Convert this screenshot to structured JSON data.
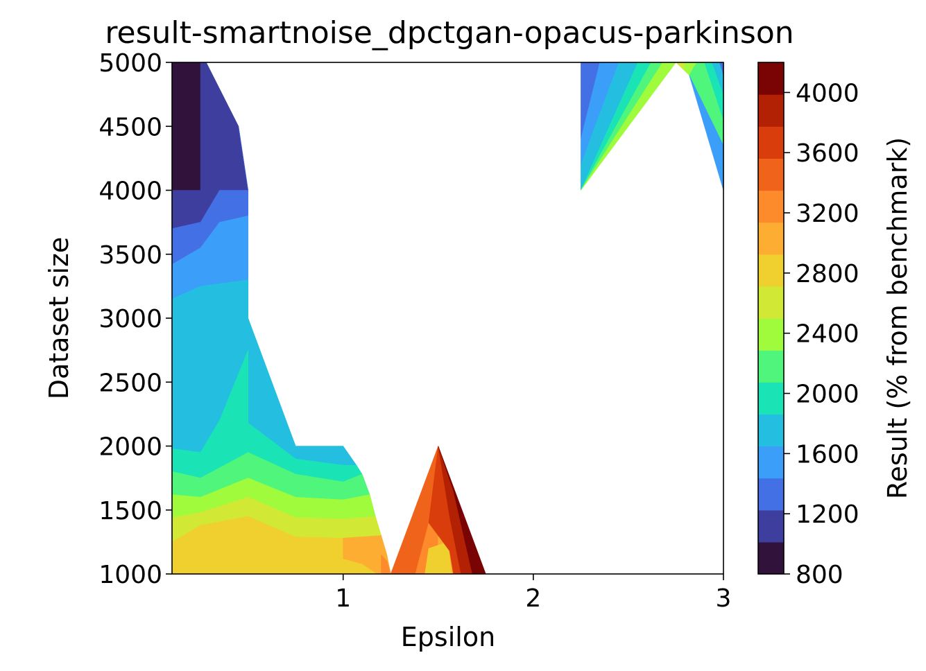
{
  "chart_data": {
    "type": "heatmap",
    "title": "result-smartnoise_dpctgan-opacus-parkinson",
    "xlabel": "Epsilon",
    "ylabel": "Dataset size",
    "colorbar_label": "Result (% from benchmark)",
    "xlim": [
      0.1,
      3
    ],
    "ylim": [
      1000,
      5000
    ],
    "x_ticks": [
      "1",
      "2",
      "3"
    ],
    "y_ticks": [
      "1000",
      "1500",
      "2000",
      "2500",
      "3000",
      "3500",
      "4000",
      "4500",
      "5000"
    ],
    "colorbar_ticks": [
      "800",
      "1200",
      "1600",
      "2000",
      "2400",
      "2800",
      "3200",
      "3600",
      "4000"
    ],
    "colorbar_range": [
      800,
      4200
    ],
    "colormap": "turbo",
    "level_colors": [
      "#30123b",
      "#3e3e9e",
      "#4470e6",
      "#3b9ef9",
      "#24bfe0",
      "#1ae4b6",
      "#4ff67b",
      "#a0fb3c",
      "#d1e934",
      "#efd02e",
      "#fcad32",
      "#fd8a2b",
      "#f0631a",
      "#d93d0c",
      "#b22103",
      "#7a0403"
    ],
    "regions": [
      {
        "level": 0,
        "value": 850,
        "points": [
          [
            0.1,
            5000
          ],
          [
            0.25,
            5000
          ],
          [
            0.25,
            4000
          ],
          [
            0.1,
            4000
          ]
        ]
      },
      {
        "level": 1,
        "value": 1150,
        "points": [
          [
            0.25,
            5000
          ],
          [
            0.28,
            5000
          ],
          [
            0.45,
            4500
          ],
          [
            0.5,
            4000
          ],
          [
            0.35,
            4000
          ],
          [
            0.25,
            3750
          ],
          [
            0.1,
            3700
          ],
          [
            0.1,
            4000
          ],
          [
            0.25,
            4000
          ]
        ]
      },
      {
        "level": 2,
        "value": 1400,
        "points": [
          [
            0.45,
            4500
          ],
          [
            0.5,
            4000
          ],
          [
            0.5,
            3800
          ],
          [
            0.35,
            3750
          ],
          [
            0.25,
            3550
          ],
          [
            0.1,
            3420
          ],
          [
            0.1,
            3700
          ],
          [
            0.25,
            3750
          ],
          [
            0.35,
            4000
          ],
          [
            0.5,
            4000
          ]
        ]
      },
      {
        "level": 3,
        "value": 1600,
        "points": [
          [
            0.1,
            3420
          ],
          [
            0.25,
            3550
          ],
          [
            0.35,
            3750
          ],
          [
            0.5,
            3800
          ],
          [
            0.5,
            3300
          ],
          [
            0.25,
            3250
          ],
          [
            0.1,
            3150
          ]
        ]
      },
      {
        "level": 2,
        "value": 1400,
        "points": [
          [
            0.1,
            2010
          ],
          [
            0.18,
            2550
          ],
          [
            0.23,
            2000
          ],
          [
            0.18,
            1880
          ]
        ]
      },
      {
        "level": 4,
        "value": 1800,
        "points": [
          [
            0.1,
            3150
          ],
          [
            0.25,
            3250
          ],
          [
            0.5,
            3300
          ],
          [
            0.5,
            3000
          ],
          [
            0.75,
            2000
          ],
          [
            1.0,
            2000
          ],
          [
            1.07,
            1850
          ],
          [
            1.0,
            1850
          ],
          [
            0.75,
            1900
          ],
          [
            0.5,
            2180
          ],
          [
            0.5,
            2750
          ],
          [
            0.35,
            2200
          ],
          [
            0.25,
            1950
          ],
          [
            0.1,
            1980
          ]
        ]
      },
      {
        "level": 5,
        "value": 2100,
        "points": [
          [
            0.1,
            1980
          ],
          [
            0.25,
            1950
          ],
          [
            0.35,
            2200
          ],
          [
            0.5,
            2750
          ],
          [
            0.5,
            2180
          ],
          [
            0.75,
            1900
          ],
          [
            1.0,
            1850
          ],
          [
            1.07,
            1850
          ],
          [
            1.1,
            1780
          ],
          [
            1.0,
            1720
          ],
          [
            0.75,
            1780
          ],
          [
            0.5,
            1950
          ],
          [
            0.25,
            1750
          ],
          [
            0.1,
            1800
          ]
        ]
      },
      {
        "level": 6,
        "value": 2300,
        "points": [
          [
            0.1,
            1800
          ],
          [
            0.25,
            1750
          ],
          [
            0.5,
            1950
          ],
          [
            0.75,
            1780
          ],
          [
            1.0,
            1720
          ],
          [
            1.1,
            1780
          ],
          [
            1.14,
            1620
          ],
          [
            1.0,
            1580
          ],
          [
            0.75,
            1600
          ],
          [
            0.5,
            1750
          ],
          [
            0.25,
            1600
          ],
          [
            0.1,
            1620
          ]
        ]
      },
      {
        "level": 7,
        "value": 2600,
        "points": [
          [
            0.1,
            1620
          ],
          [
            0.25,
            1600
          ],
          [
            0.5,
            1750
          ],
          [
            0.75,
            1600
          ],
          [
            1.0,
            1580
          ],
          [
            1.14,
            1620
          ],
          [
            1.17,
            1450
          ],
          [
            1.0,
            1430
          ],
          [
            0.75,
            1440
          ],
          [
            0.5,
            1600
          ],
          [
            0.25,
            1480
          ],
          [
            0.1,
            1440
          ]
        ]
      },
      {
        "level": 8,
        "value": 2750,
        "points": [
          [
            0.1,
            1440
          ],
          [
            0.25,
            1480
          ],
          [
            0.5,
            1600
          ],
          [
            0.75,
            1440
          ],
          [
            1.0,
            1430
          ],
          [
            1.17,
            1450
          ],
          [
            1.2,
            1300
          ],
          [
            1.0,
            1280
          ],
          [
            0.75,
            1290
          ],
          [
            0.5,
            1450
          ],
          [
            0.25,
            1380
          ],
          [
            0.1,
            1250
          ]
        ]
      },
      {
        "level": 9,
        "value": 2950,
        "points": [
          [
            0.1,
            1250
          ],
          [
            0.25,
            1380
          ],
          [
            0.5,
            1450
          ],
          [
            0.75,
            1290
          ],
          [
            1.0,
            1280
          ],
          [
            1.2,
            1300
          ],
          [
            1.22,
            1150
          ],
          [
            1.18,
            1000
          ],
          [
            0.1,
            1000
          ]
        ]
      },
      {
        "level": 10,
        "value": 3100,
        "points": [
          [
            1.0,
            1280
          ],
          [
            1.2,
            1300
          ],
          [
            1.23,
            1150
          ],
          [
            1.25,
            1000
          ],
          [
            1.18,
            1000
          ],
          [
            1.1,
            1080
          ],
          [
            1.0,
            1120
          ]
        ]
      },
      {
        "level": 11,
        "value": 3300,
        "points": [
          [
            1.2,
            1150
          ],
          [
            1.23,
            1100
          ],
          [
            1.25,
            1000
          ],
          [
            1.2,
            1000
          ]
        ]
      },
      {
        "level": 12,
        "value": 3500,
        "points": [
          [
            1.5,
            2000
          ],
          [
            1.25,
            1000
          ],
          [
            1.38,
            1000
          ],
          [
            1.45,
            1400
          ]
        ]
      },
      {
        "level": 11,
        "value": 3300,
        "points": [
          [
            1.45,
            1400
          ],
          [
            1.38,
            1000
          ],
          [
            1.5,
            1000
          ],
          [
            1.5,
            1300
          ]
        ]
      },
      {
        "level": 10,
        "value": 3100,
        "points": [
          [
            1.5,
            1300
          ],
          [
            1.5,
            1000
          ],
          [
            1.58,
            1000
          ],
          [
            1.56,
            1180
          ]
        ]
      },
      {
        "level": 9,
        "value": 2950,
        "points": [
          [
            1.45,
            1200
          ],
          [
            1.55,
            1250
          ],
          [
            1.57,
            1000
          ],
          [
            1.43,
            1000
          ]
        ]
      },
      {
        "level": 13,
        "value": 3700,
        "points": [
          [
            1.5,
            2000
          ],
          [
            1.45,
            1400
          ],
          [
            1.5,
            1300
          ],
          [
            1.56,
            1180
          ],
          [
            1.58,
            1000
          ],
          [
            1.62,
            1000
          ],
          [
            1.56,
            1450
          ]
        ]
      },
      {
        "level": 14,
        "value": 3900,
        "points": [
          [
            1.5,
            2000
          ],
          [
            1.56,
            1450
          ],
          [
            1.62,
            1000
          ],
          [
            1.68,
            1000
          ],
          [
            1.58,
            1650
          ]
        ]
      },
      {
        "level": 15,
        "value": 4100,
        "points": [
          [
            1.5,
            2000
          ],
          [
            1.58,
            1650
          ],
          [
            1.68,
            1000
          ],
          [
            1.75,
            1000
          ]
        ]
      },
      {
        "level": 2,
        "value": 1300,
        "points": [
          [
            2.25,
            5000
          ],
          [
            2.35,
            5000
          ],
          [
            2.25,
            4400
          ]
        ]
      },
      {
        "level": 3,
        "value": 1550,
        "points": [
          [
            2.35,
            5000
          ],
          [
            2.45,
            5000
          ],
          [
            2.25,
            4200
          ],
          [
            2.25,
            4400
          ]
        ]
      },
      {
        "level": 4,
        "value": 1750,
        "points": [
          [
            2.45,
            5000
          ],
          [
            2.55,
            5000
          ],
          [
            2.25,
            4000
          ],
          [
            2.25,
            4200
          ]
        ]
      },
      {
        "level": 5,
        "value": 2000,
        "points": [
          [
            2.55,
            5000
          ],
          [
            2.62,
            5000
          ],
          [
            2.25,
            4000
          ]
        ]
      },
      {
        "level": 6,
        "value": 2250,
        "points": [
          [
            2.62,
            5000
          ],
          [
            2.68,
            5000
          ],
          [
            2.25,
            4000
          ]
        ]
      },
      {
        "level": 7,
        "value": 2500,
        "points": [
          [
            2.68,
            5000
          ],
          [
            2.75,
            5000
          ],
          [
            2.25,
            4000
          ]
        ]
      },
      {
        "level": 8,
        "value": 2700,
        "points": [
          [
            2.75,
            5000
          ],
          [
            2.8,
            5000
          ],
          [
            2.82,
            4900
          ]
        ]
      },
      {
        "level": 7,
        "value": 2500,
        "points": [
          [
            2.8,
            5000
          ],
          [
            2.86,
            5000
          ],
          [
            2.82,
            4900
          ],
          [
            2.79,
            4950
          ]
        ]
      },
      {
        "level": 6,
        "value": 2250,
        "points": [
          [
            2.86,
            5000
          ],
          [
            2.9,
            5000
          ],
          [
            3.0,
            4550
          ],
          [
            3.0,
            4350
          ],
          [
            2.82,
            4900
          ]
        ]
      },
      {
        "level": 5,
        "value": 2000,
        "points": [
          [
            2.9,
            5000
          ],
          [
            2.94,
            5000
          ],
          [
            3.0,
            4750
          ],
          [
            3.0,
            4550
          ]
        ]
      },
      {
        "level": 4,
        "value": 1750,
        "points": [
          [
            2.94,
            5000
          ],
          [
            2.98,
            5000
          ],
          [
            3.0,
            4900
          ],
          [
            3.0,
            4750
          ]
        ]
      },
      {
        "level": 3,
        "value": 1550,
        "points": [
          [
            2.82,
            4900
          ],
          [
            3.0,
            4350
          ],
          [
            3.0,
            4000
          ]
        ]
      },
      {
        "level": 2,
        "value": 1300,
        "points": [
          [
            2.98,
            5000
          ],
          [
            3.0,
            5000
          ],
          [
            3.0,
            4900
          ]
        ]
      }
    ]
  }
}
